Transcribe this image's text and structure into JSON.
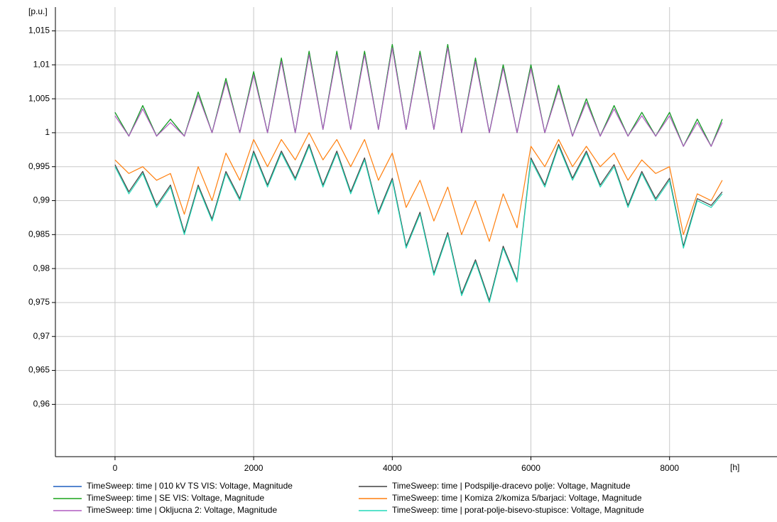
{
  "chart_data": {
    "type": "line",
    "y_label": "[p.u.]",
    "x_label": "[h]",
    "x": [
      0,
      200,
      400,
      600,
      800,
      1000,
      1200,
      1400,
      1600,
      1800,
      2000,
      2200,
      2400,
      2600,
      2800,
      3000,
      3200,
      3400,
      3600,
      3800,
      4000,
      4200,
      4400,
      4600,
      4800,
      5000,
      5200,
      5400,
      5600,
      5800,
      6000,
      6200,
      6400,
      6600,
      6800,
      7000,
      7200,
      7400,
      7600,
      7800,
      8000,
      8200,
      8400,
      8600,
      8760
    ],
    "xlim": [
      -860,
      9550
    ],
    "xticks": [
      0,
      2000,
      4000,
      6000,
      8000
    ],
    "ylim": [
      0.9523,
      1.0185
    ],
    "yticks": [
      {
        "value": 0.96,
        "label": "0,96"
      },
      {
        "value": 0.965,
        "label": "0,965"
      },
      {
        "value": 0.97,
        "label": "0,97"
      },
      {
        "value": 0.975,
        "label": "0,975"
      },
      {
        "value": 0.98,
        "label": "0,98"
      },
      {
        "value": 0.985,
        "label": "0,985"
      },
      {
        "value": 0.99,
        "label": "0,99"
      },
      {
        "value": 0.995,
        "label": "0,995"
      },
      1,
      {
        "value": 1.005,
        "label": "1,005"
      },
      {
        "value": 1.01,
        "label": "1,01"
      },
      {
        "value": 1.015,
        "label": "1,015"
      }
    ],
    "grid": true,
    "series": [
      {
        "name": "TimeSweep: time | 010 kV TS VIS: Voltage, Magnitude",
        "color": "#1f5fbf",
        "values": [
          1.003,
          0.9995,
          1.004,
          0.9995,
          1.002,
          0.9995,
          1.006,
          1.0,
          1.008,
          1.0,
          1.009,
          1.0,
          1.011,
          1.0,
          1.012,
          1.0005,
          1.012,
          1.0005,
          1.012,
          1.0005,
          1.013,
          1.0005,
          1.012,
          1.0005,
          1.013,
          1.0,
          1.011,
          1.0,
          1.01,
          1.0,
          1.01,
          1.0,
          1.007,
          0.9995,
          1.005,
          0.9995,
          1.004,
          0.9995,
          1.003,
          0.9995,
          1.003,
          0.998,
          1.002,
          0.998,
          1.002
        ]
      },
      {
        "name": "TimeSweep: time | SE VIS: Voltage, Magnitude",
        "color": "#1aa31a",
        "values": [
          1.003,
          0.9995,
          1.004,
          0.9995,
          1.002,
          0.9995,
          1.006,
          1.0,
          1.008,
          1.0,
          1.009,
          1.0,
          1.011,
          1.0,
          1.012,
          1.0005,
          1.012,
          1.0005,
          1.012,
          1.0005,
          1.013,
          1.0005,
          1.012,
          1.0005,
          1.013,
          1.0,
          1.011,
          1.0,
          1.01,
          1.0,
          1.01,
          1.0,
          1.007,
          0.9995,
          1.005,
          0.9995,
          1.004,
          0.9995,
          1.003,
          0.9995,
          1.003,
          0.998,
          1.002,
          0.998,
          1.002
        ]
      },
      {
        "name": "TimeSweep: time | Okljucna 2: Voltage, Magnitude",
        "color": "#b05cc0",
        "values": [
          1.0025,
          0.9995,
          1.0035,
          0.9995,
          1.0015,
          0.9995,
          1.0055,
          1.0,
          1.0075,
          1.0,
          1.0085,
          1.0,
          1.0105,
          1.0,
          1.0115,
          1.0005,
          1.0115,
          1.0005,
          1.0115,
          1.0005,
          1.0125,
          1.0005,
          1.0115,
          1.0005,
          1.0125,
          1.0,
          1.0105,
          1.0,
          1.0095,
          1.0,
          1.0095,
          1.0,
          1.0065,
          0.9995,
          1.0045,
          0.9995,
          1.0035,
          0.9995,
          1.0025,
          0.9995,
          1.0025,
          0.998,
          1.0015,
          0.998,
          1.0015
        ]
      },
      {
        "name": "TimeSweep: time | Podspilje-dracevo polje: Voltage, Magnitude",
        "color": "#404040",
        "values": [
          0.9953,
          0.9913,
          0.9943,
          0.9893,
          0.9923,
          0.9853,
          0.9923,
          0.9873,
          0.9943,
          0.9903,
          0.9973,
          0.9923,
          0.9973,
          0.9933,
          0.9983,
          0.9923,
          0.9973,
          0.9913,
          0.9963,
          0.9883,
          0.9933,
          0.9833,
          0.9883,
          0.9793,
          0.9853,
          0.9763,
          0.9813,
          0.9753,
          0.9833,
          0.9783,
          0.9963,
          0.9923,
          0.9983,
          0.9933,
          0.9973,
          0.9923,
          0.9953,
          0.9893,
          0.9943,
          0.9903,
          0.9933,
          0.9833,
          0.9903,
          0.9893,
          0.9913
        ]
      },
      {
        "name": "TimeSweep: time | Komiza 2/komiza 5/barjaci: Voltage, Magnitude",
        "color": "#ff7f0e",
        "values": [
          0.996,
          0.994,
          0.995,
          0.993,
          0.994,
          0.988,
          0.995,
          0.99,
          0.997,
          0.993,
          0.999,
          0.995,
          0.999,
          0.996,
          1.0,
          0.996,
          0.999,
          0.995,
          0.999,
          0.993,
          0.997,
          0.989,
          0.993,
          0.987,
          0.992,
          0.985,
          0.99,
          0.984,
          0.991,
          0.986,
          0.998,
          0.995,
          0.999,
          0.995,
          0.998,
          0.995,
          0.997,
          0.993,
          0.996,
          0.994,
          0.995,
          0.985,
          0.991,
          0.99,
          0.993
        ]
      },
      {
        "name": "TimeSweep: time | porat-polje-bisevo-stupisce: Voltage, Magnitude",
        "color": "#22d8b8",
        "values": [
          0.995,
          0.991,
          0.994,
          0.989,
          0.992,
          0.985,
          0.992,
          0.987,
          0.994,
          0.99,
          0.997,
          0.992,
          0.997,
          0.993,
          0.998,
          0.992,
          0.997,
          0.991,
          0.996,
          0.988,
          0.993,
          0.983,
          0.988,
          0.979,
          0.985,
          0.976,
          0.981,
          0.975,
          0.983,
          0.978,
          0.996,
          0.992,
          0.998,
          0.993,
          0.997,
          0.992,
          0.995,
          0.989,
          0.994,
          0.99,
          0.993,
          0.983,
          0.99,
          0.989,
          0.991
        ]
      }
    ]
  }
}
